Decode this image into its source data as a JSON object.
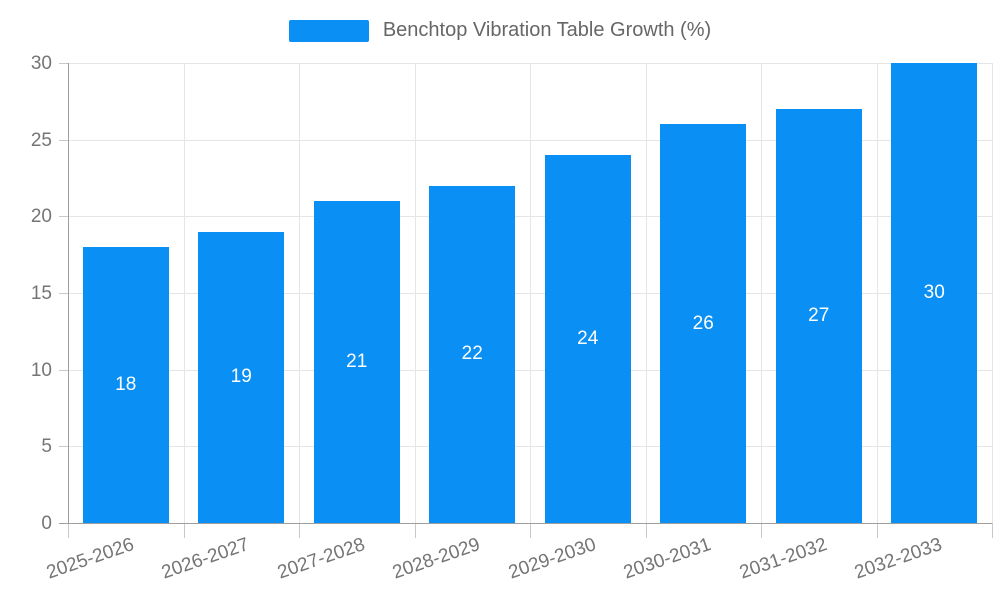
{
  "legend": {
    "label": "Benchtop Vibration Table Growth (%)"
  },
  "chart_data": {
    "type": "bar",
    "title": "",
    "categories": [
      "2025-2026",
      "2026-2027",
      "2027-2028",
      "2028-2029",
      "2029-2030",
      "2030-2031",
      "2031-2032",
      "2032-2033"
    ],
    "values": [
      18,
      19,
      21,
      22,
      24,
      26,
      27,
      30
    ],
    "series": [
      {
        "name": "Benchtop Vibration Table Growth (%)",
        "values": [
          18,
          19,
          21,
          22,
          24,
          26,
          27,
          30
        ]
      }
    ],
    "xlabel": "",
    "ylabel": "",
    "ylim": [
      0,
      30
    ],
    "y_ticks": [
      0,
      5,
      10,
      15,
      20,
      25,
      30
    ],
    "grid": true,
    "legend_position": "top",
    "x_label_rotation_deg": -19,
    "colors": {
      "bar": "#0A8FF5",
      "bar_label": "#ffffff",
      "axis_line": "#9e9e9e",
      "grid_line": "#e5e5e5",
      "tick_mark": "#c9c9c9",
      "tick_text": "#757575",
      "legend_text": "#666666",
      "background": "#ffffff"
    }
  }
}
